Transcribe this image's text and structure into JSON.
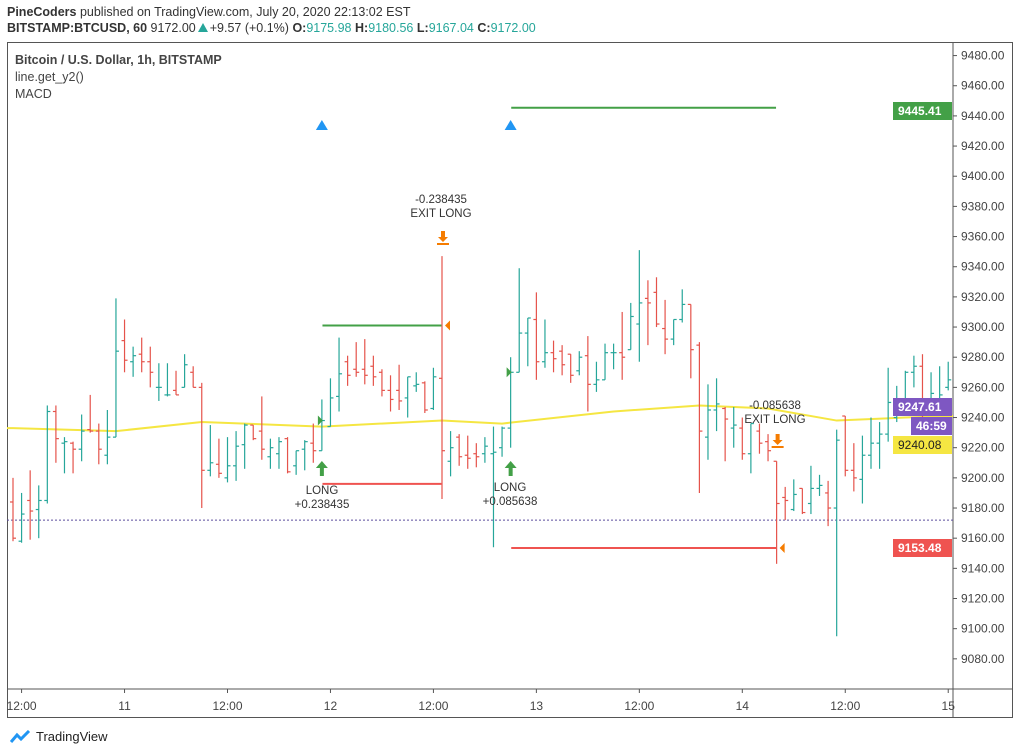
{
  "header": {
    "publisher": "PineCoders",
    "published_text": "published on TradingView.com, July 20, 2020 22:13:02 EST",
    "symbol": "BITSTAMP:BTCUSD, 60",
    "last": "9172.00",
    "change": "+9.57 (+0.1%)",
    "o_label": "O:",
    "o": "9175.98",
    "h_label": "H:",
    "h": "9180.56",
    "l_label": "L:",
    "l": "9167.04",
    "c_label": "C:",
    "c": "9172.00"
  },
  "legend": {
    "series": "Bitcoin / U.S. Dollar, 1h, BITSTAMP",
    "indicator1": "line.get_y2()",
    "indicator2": "MACD"
  },
  "price_labels": {
    "target": "9445.41",
    "current": "9247.61",
    "countdown": "46:59",
    "ma": "9240.08",
    "stop": "9153.48"
  },
  "annotations": {
    "long1": "LONG",
    "long1_value": "+0.238435",
    "exit1_value": "-0.238435",
    "exit1": "EXIT LONG",
    "long2": "LONG",
    "long2_value": "+0.085638",
    "exit2_value": "-0.085638",
    "exit2": "EXIT LONG"
  },
  "brand": "TradingView",
  "colors": {
    "up": "#26a69a",
    "down": "#e5534b",
    "ma": "#f5e642",
    "target": "#43a047",
    "stop": "#ef5350",
    "current": "#7e57c2",
    "exit": "#f57c00",
    "signal": "#2196f3"
  },
  "chart_data": {
    "type": "ohlc",
    "title": "Bitcoin / U.S. Dollar, 1h, BITSTAMP",
    "ylim": [
      9060,
      9489
    ],
    "y_ticks": [
      9080,
      9100,
      9120,
      9140,
      9160,
      9180,
      9200,
      9220,
      9240,
      9260,
      9280,
      9300,
      9320,
      9340,
      9360,
      9380,
      9400,
      9420,
      9440,
      9460,
      9480
    ],
    "x_ticks": [
      {
        "bar": 1,
        "label": "12:00"
      },
      {
        "bar": 13,
        "label": "11"
      },
      {
        "bar": 25,
        "label": "12:00"
      },
      {
        "bar": 37,
        "label": "12"
      },
      {
        "bar": 49,
        "label": "12:00"
      },
      {
        "bar": 61,
        "label": "13"
      },
      {
        "bar": 73,
        "label": "12:00"
      },
      {
        "bar": 85,
        "label": "14"
      },
      {
        "bar": 97,
        "label": "12:00"
      },
      {
        "bar": 109,
        "label": "15"
      }
    ],
    "bars": [
      [
        9184,
        9200,
        9158,
        9160
      ],
      [
        9158,
        9190,
        9157,
        9176
      ],
      [
        9185,
        9205,
        9159,
        9178
      ],
      [
        9179,
        9195,
        9160,
        9185
      ],
      [
        9185,
        9248,
        9183,
        9244
      ],
      [
        9244,
        9248,
        9210,
        9226
      ],
      [
        9223,
        9227,
        9203,
        9224
      ],
      [
        9223,
        9224,
        9203,
        9219
      ],
      [
        9219,
        9242,
        9211,
        9231
      ],
      [
        9232,
        9255,
        9230,
        9231
      ],
      [
        9231,
        9236,
        9209,
        9219
      ],
      [
        9215,
        9245,
        9209,
        9227
      ],
      [
        9227,
        9319,
        9227,
        9284
      ],
      [
        9291,
        9305,
        9270,
        9278
      ],
      [
        9277,
        9287,
        9267,
        9281
      ],
      [
        9282,
        9293,
        9270,
        9277
      ],
      [
        9277,
        9287,
        9260,
        9270
      ],
      [
        9260,
        9276,
        9251,
        9260
      ],
      [
        9255,
        9276,
        9254,
        9255
      ],
      [
        9258,
        9271,
        9255,
        9255
      ],
      [
        9260,
        9282,
        9260,
        9275
      ],
      [
        9270,
        9274,
        9260,
        9260
      ],
      [
        9260,
        9263,
        9180,
        9205
      ],
      [
        9205,
        9235,
        9201,
        9210
      ],
      [
        9209,
        9226,
        9200,
        9203
      ],
      [
        9200,
        9227,
        9197,
        9208
      ],
      [
        9208,
        9231,
        9198,
        9221
      ],
      [
        9222,
        9236,
        9206,
        9235
      ],
      [
        9235,
        9235,
        9225,
        9226
      ],
      [
        9231,
        9254,
        9212,
        9219
      ],
      [
        9214,
        9226,
        9206,
        9220
      ],
      [
        9216,
        9227,
        9206,
        9224
      ],
      [
        9226,
        9227,
        9203,
        9204
      ],
      [
        9208,
        9218,
        9202,
        9218
      ],
      [
        9219,
        9225,
        9205,
        9224
      ],
      [
        9223,
        9236,
        9210,
        9218
      ],
      [
        9218,
        9252,
        9218,
        9238
      ],
      [
        9234,
        9266,
        9234,
        9253
      ],
      [
        9254,
        9293,
        9244,
        9269
      ],
      [
        9277,
        9281,
        9261,
        9268
      ],
      [
        9272,
        9290,
        9267,
        9270
      ],
      [
        9272,
        9292,
        9262,
        9268
      ],
      [
        9274,
        9281,
        9261,
        9267
      ],
      [
        9270,
        9272,
        9254,
        9258
      ],
      [
        9258,
        9268,
        9244,
        9252
      ],
      [
        9258,
        9275,
        9245,
        9251
      ],
      [
        9253,
        9267,
        9240,
        9267
      ],
      [
        9261,
        9270,
        9257,
        9262
      ],
      [
        9263,
        9264,
        9243,
        9245
      ],
      [
        9246,
        9273,
        9245,
        9267
      ],
      [
        9266,
        9347,
        9186,
        9218
      ],
      [
        9211,
        9231,
        9201,
        9220
      ],
      [
        9227,
        9229,
        9208,
        9214
      ],
      [
        9215,
        9228,
        9206,
        9213
      ],
      [
        9216,
        9223,
        9207,
        9214
      ],
      [
        9216,
        9227,
        9210,
        9221
      ],
      [
        9216,
        9234,
        9154,
        9217
      ],
      [
        9220,
        9234,
        9214,
        9233
      ],
      [
        9233,
        9280,
        9220,
        9270
      ],
      [
        9270,
        9339,
        9270,
        9296
      ],
      [
        9296,
        9306,
        9274,
        9306
      ],
      [
        9305,
        9323,
        9265,
        9277
      ],
      [
        9277,
        9305,
        9273,
        9283
      ],
      [
        9283,
        9291,
        9270,
        9279
      ],
      [
        9284,
        9288,
        9268,
        9275
      ],
      [
        9282,
        9282,
        9263,
        9268
      ],
      [
        9271,
        9284,
        9268,
        9280
      ],
      [
        9281,
        9294,
        9244,
        9262
      ],
      [
        9262,
        9277,
        9257,
        9265
      ],
      [
        9265,
        9289,
        9265,
        9283
      ],
      [
        9283,
        9289,
        9272,
        9283
      ],
      [
        9283,
        9310,
        9265,
        9280
      ],
      [
        9285,
        9316,
        9285,
        9307
      ],
      [
        9302,
        9351,
        9277,
        9316
      ],
      [
        9319,
        9331,
        9288,
        9316
      ],
      [
        9323,
        9333,
        9300,
        9302
      ],
      [
        9299,
        9318,
        9282,
        9292
      ],
      [
        9292,
        9305,
        9288,
        9305
      ],
      [
        9305,
        9325,
        9303,
        9315
      ],
      [
        9315,
        9315,
        9266,
        9285
      ],
      [
        9288,
        9290,
        9190,
        9231
      ],
      [
        9227,
        9262,
        9212,
        9245
      ],
      [
        9245,
        9266,
        9231,
        9249
      ],
      [
        9246,
        9247,
        9211,
        9239
      ],
      [
        9233,
        9247,
        9220,
        9235
      ],
      [
        9233,
        9240,
        9212,
        9216
      ],
      [
        9216,
        9236,
        9203,
        9236
      ],
      [
        9231,
        9236,
        9216,
        9223
      ],
      [
        9224,
        9229,
        9211,
        9218
      ],
      [
        9211,
        9211,
        9143,
        9183
      ],
      [
        9187,
        9194,
        9172,
        9185
      ],
      [
        9179,
        9199,
        9178,
        9189
      ],
      [
        9193,
        9193,
        9176,
        9177
      ],
      [
        9183,
        9208,
        9176,
        9193
      ],
      [
        9193,
        9202,
        9188,
        9195
      ],
      [
        9190,
        9198,
        9168,
        9180
      ],
      [
        9180,
        9232,
        9095,
        9225
      ],
      [
        9241,
        9241,
        9201,
        9205
      ],
      [
        9205,
        9223,
        9191,
        9200
      ],
      [
        9199,
        9228,
        9183,
        9215
      ],
      [
        9215,
        9240,
        9206,
        9223
      ],
      [
        9223,
        9237,
        9206,
        9229
      ],
      [
        9229,
        9273,
        9224,
        9250
      ],
      [
        9240,
        9261,
        9237,
        9249
      ],
      [
        9252,
        9271,
        9243,
        9270
      ],
      [
        9270,
        9281,
        9260,
        9274
      ],
      [
        9274,
        9282,
        9240,
        9245
      ],
      [
        9246,
        9270,
        9242,
        9256
      ],
      [
        9252,
        9274,
        9250,
        9255
      ],
      [
        9260,
        9277,
        9258,
        9265
      ]
    ],
    "moving_average": [
      [
        0,
        9233
      ],
      [
        12,
        9231
      ],
      [
        22,
        9237
      ],
      [
        36,
        9234
      ],
      [
        50,
        9238
      ],
      [
        57,
        9236
      ],
      [
        70,
        9244
      ],
      [
        80,
        9248
      ],
      [
        88,
        9246
      ],
      [
        96,
        9238
      ],
      [
        104,
        9240
      ],
      [
        109,
        9241
      ]
    ],
    "last_price_line": 9172,
    "levels": [
      {
        "name": "target-1",
        "price": 9301,
        "from": 37,
        "to": 49,
        "color": "#43a047"
      },
      {
        "name": "stop-1",
        "price": 9196,
        "from": 37,
        "to": 49,
        "color": "#ef5350"
      },
      {
        "name": "target-2",
        "price": 9445.41,
        "from": 59,
        "to": 88,
        "color": "#43a047"
      },
      {
        "name": "stop-2",
        "price": 9153.48,
        "from": 59,
        "to": 88,
        "color": "#ef5350"
      }
    ],
    "signals": [
      36,
      58
    ],
    "entries": [
      {
        "bar": 36,
        "price": 9238
      },
      {
        "bar": 58,
        "price": 9270
      }
    ],
    "exits": [
      {
        "bar": 50,
        "price": 9347
      },
      {
        "bar": 89,
        "price": 9211
      }
    ]
  }
}
